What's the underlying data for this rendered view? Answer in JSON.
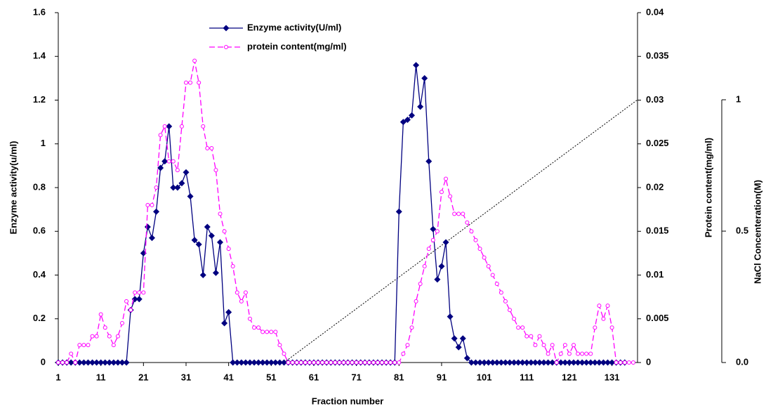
{
  "chart_data": {
    "type": "line",
    "xlabel": "Fraction number",
    "ylabel": "Enzyme activity(u/ml)",
    "y2label": "Protein content(mg/ml)",
    "y3label": "NaCl Concenteration(M)",
    "x": [
      1,
      2,
      3,
      4,
      5,
      6,
      7,
      8,
      9,
      10,
      11,
      12,
      13,
      14,
      15,
      16,
      17,
      18,
      19,
      20,
      21,
      22,
      23,
      24,
      25,
      26,
      27,
      28,
      29,
      30,
      31,
      32,
      33,
      34,
      35,
      36,
      37,
      38,
      39,
      40,
      41,
      42,
      43,
      44,
      45,
      46,
      47,
      48,
      49,
      50,
      51,
      52,
      53,
      54,
      55,
      56,
      57,
      58,
      59,
      60,
      61,
      62,
      63,
      64,
      65,
      66,
      67,
      68,
      69,
      70,
      71,
      72,
      73,
      74,
      75,
      76,
      77,
      78,
      79,
      80,
      81,
      82,
      83,
      84,
      85,
      86,
      87,
      88,
      89,
      90,
      91,
      92,
      93,
      94,
      95,
      96,
      97,
      98,
      99,
      100,
      101,
      102,
      103,
      104,
      105,
      106,
      107,
      108,
      109,
      110,
      111,
      112,
      113,
      114,
      115,
      116,
      117,
      118,
      119,
      120,
      121,
      122,
      123,
      124,
      125,
      126,
      127,
      128,
      129,
      130,
      131,
      132,
      133,
      134,
      135,
      136
    ],
    "xlim": [
      1,
      137
    ],
    "xticks": [
      1,
      11,
      21,
      31,
      41,
      51,
      61,
      71,
      81,
      91,
      101,
      111,
      121,
      131
    ],
    "ylim": [
      0,
      1.6
    ],
    "yticks": [
      0,
      0.2,
      0.4,
      0.6,
      0.8,
      1,
      1.2,
      1.4,
      1.6
    ],
    "y2lim": [
      0,
      0.04
    ],
    "y2ticks": [
      0,
      0.005,
      0.01,
      0.015,
      0.02,
      0.025,
      0.03,
      0.035,
      0.04
    ],
    "y3lim": [
      0,
      1
    ],
    "y3ticks": [
      1,
      0.5,
      {
        "value": 0,
        "label": "0.0"
      }
    ],
    "series": [
      {
        "name": "Enzyme activity(U/ml)",
        "color": "#000080",
        "marker": "diamond",
        "values": [
          0,
          0,
          0,
          0,
          0,
          0,
          0,
          0,
          0,
          0,
          0,
          0,
          0,
          0,
          0,
          0,
          0,
          0.24,
          0.29,
          0.29,
          0.5,
          0.62,
          0.57,
          0.69,
          0.89,
          0.92,
          1.08,
          0.8,
          0.8,
          0.82,
          0.87,
          0.76,
          0.56,
          0.54,
          0.4,
          0.62,
          0.58,
          0.41,
          0.55,
          0.18,
          0.23,
          0,
          0,
          0,
          0,
          0,
          0,
          0,
          0,
          0,
          0,
          0,
          0,
          0,
          0,
          0,
          0,
          0,
          0,
          0,
          0,
          0,
          0,
          0,
          0,
          0,
          0,
          0,
          0,
          0,
          0,
          0,
          0,
          0,
          0,
          0,
          0,
          0,
          0,
          0,
          0.69,
          1.1,
          1.11,
          1.13,
          1.36,
          1.17,
          1.3,
          0.92,
          0.61,
          0.38,
          0.44,
          0.55,
          0.21,
          0.11,
          0.07,
          0.11,
          0.02,
          0,
          0,
          0,
          0,
          0,
          0,
          0,
          0,
          0,
          0,
          0,
          0,
          0,
          0,
          0,
          0,
          0,
          0,
          0,
          0,
          0,
          0,
          0,
          0,
          0,
          0,
          0,
          0,
          0,
          0,
          0,
          0,
          0,
          0,
          0,
          0,
          0,
          null,
          null
        ]
      },
      {
        "name": "protein content(mg/ml)",
        "color": "#ff00ff",
        "marker": "circle",
        "dashed": true,
        "axis": "y2",
        "values": [
          0,
          0,
          0,
          0.001,
          0,
          0.002,
          0.002,
          0.002,
          0.003,
          0.003,
          0.0055,
          0.004,
          0.003,
          0.002,
          0.003,
          0.0045,
          0.007,
          0.006,
          0.008,
          0.008,
          0.008,
          0.018,
          0.018,
          0.02,
          0.026,
          0.027,
          0.023,
          0.023,
          0.022,
          0.027,
          0.032,
          0.032,
          0.0345,
          0.032,
          0.027,
          0.0245,
          0.0245,
          0.022,
          0.017,
          0.015,
          0.013,
          0.011,
          0.008,
          0.007,
          0.008,
          0.005,
          0.004,
          0.004,
          0.0035,
          0.0035,
          0.0035,
          0.0035,
          0.002,
          0.001,
          0,
          0,
          0,
          0,
          0,
          0,
          0,
          0,
          0,
          0,
          0,
          0,
          0,
          0,
          0,
          0,
          0,
          0,
          0,
          0,
          0,
          0,
          0,
          0,
          0,
          0,
          0,
          0.001,
          0.002,
          0.004,
          0.007,
          0.009,
          0.011,
          0.013,
          0.014,
          0.015,
          0.0195,
          0.021,
          0.019,
          0.017,
          0.017,
          0.017,
          0.016,
          0.015,
          0.014,
          0.013,
          0.012,
          0.011,
          0.01,
          0.009,
          0.008,
          0.007,
          0.006,
          0.005,
          0.004,
          0.004,
          0.003,
          0.003,
          0.002,
          0.003,
          0.002,
          0.001,
          0.002,
          0,
          0.001,
          0.002,
          0.001,
          0.002,
          0.001,
          0.001,
          0.001,
          0.001,
          0.004,
          0.0065,
          0.005,
          0.0065,
          0.004,
          0,
          0,
          0,
          0,
          0
        ]
      }
    ],
    "gradient": {
      "x": [
        54,
        137
      ],
      "values": [
        0,
        1
      ],
      "color": "#000000",
      "axis": "y3"
    }
  }
}
